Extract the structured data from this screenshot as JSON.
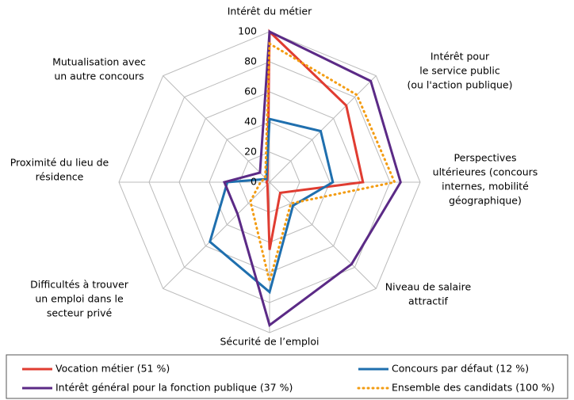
{
  "chart_data": {
    "type": "radar",
    "categories": [
      [
        "Intérêt du métier"
      ],
      [
        "Intérêt pour",
        "le service public",
        "(ou l'action publique)"
      ],
      [
        "Perspectives",
        "ultérieures (concours",
        "internes, mobilité",
        "géographique)"
      ],
      [
        "Niveau de salaire",
        "attractif"
      ],
      [
        "Sécurité de l’emploi"
      ],
      [
        "Difficultés à trouver",
        "un emploi dans le",
        "secteur privé"
      ],
      [
        "Proximité du lieu de",
        "résidence"
      ],
      [
        "Mutualisation avec",
        "un autre concours"
      ]
    ],
    "ylim": [
      0,
      100
    ],
    "yticks": [
      0,
      20,
      40,
      60,
      80,
      100
    ],
    "grid": true,
    "series": [
      {
        "name": "Vocation métier (51 %)",
        "color": "#e03c31",
        "style": "solid",
        "values": [
          100,
          72,
          62,
          10,
          45,
          2,
          2,
          2
        ]
      },
      {
        "name": "Concours par défaut  (12 %)",
        "color": "#1f6fae",
        "style": "solid",
        "values": [
          42,
          48,
          42,
          22,
          73,
          56,
          28,
          3
        ]
      },
      {
        "name": "Intérêt général pour la fonction publique (37 %)",
        "color": "#5b2a86",
        "style": "solid",
        "values": [
          100,
          95,
          87,
          77,
          95,
          30,
          30,
          9
        ]
      },
      {
        "name": "Ensemble des candidats (100 %)",
        "color": "#f39c12",
        "style": "dotted",
        "values": [
          92,
          82,
          83,
          20,
          66,
          18,
          6,
          4
        ]
      }
    ]
  }
}
